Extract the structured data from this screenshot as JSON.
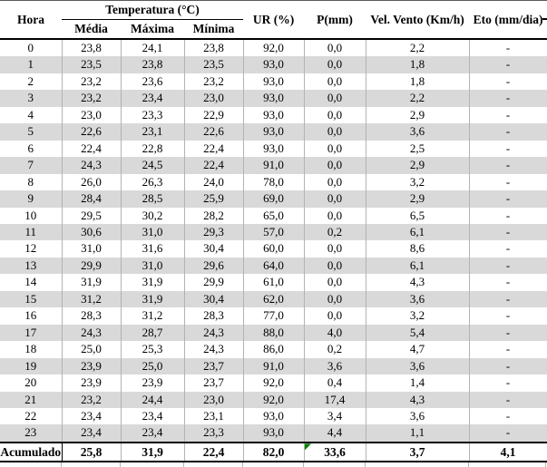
{
  "table": {
    "title_context": "Hourly weather data table",
    "header": {
      "hora": "Hora",
      "temperatura_group": "Temperatura (°C)",
      "media": "Média",
      "maxima": "Máxima",
      "minima": "Mínima",
      "ur": "UR (%)",
      "p": "P(mm)",
      "vento": "Vel. Vento (Km/h)",
      "eto": "Eto (mm/dia)"
    },
    "rows": [
      [
        "0",
        "23,8",
        "24,1",
        "23,8",
        "92,0",
        "0,0",
        "2,2",
        "-"
      ],
      [
        "1",
        "23,5",
        "23,8",
        "23,5",
        "93,0",
        "0,0",
        "1,8",
        "-"
      ],
      [
        "2",
        "23,2",
        "23,6",
        "23,2",
        "93,0",
        "0,0",
        "1,8",
        "-"
      ],
      [
        "3",
        "23,2",
        "23,4",
        "23,0",
        "93,0",
        "0,0",
        "2,2",
        "-"
      ],
      [
        "4",
        "23,0",
        "23,3",
        "22,9",
        "93,0",
        "0,0",
        "2,9",
        "-"
      ],
      [
        "5",
        "22,6",
        "23,1",
        "22,6",
        "93,0",
        "0,0",
        "3,6",
        "-"
      ],
      [
        "6",
        "22,4",
        "22,8",
        "22,4",
        "93,0",
        "0,0",
        "2,5",
        "-"
      ],
      [
        "7",
        "24,3",
        "24,5",
        "22,4",
        "91,0",
        "0,0",
        "2,9",
        "-"
      ],
      [
        "8",
        "26,0",
        "26,3",
        "24,0",
        "78,0",
        "0,0",
        "3,2",
        "-"
      ],
      [
        "9",
        "28,4",
        "28,5",
        "25,9",
        "69,0",
        "0,0",
        "2,9",
        "-"
      ],
      [
        "10",
        "29,5",
        "30,2",
        "28,2",
        "65,0",
        "0,0",
        "6,5",
        "-"
      ],
      [
        "11",
        "30,6",
        "31,0",
        "29,3",
        "57,0",
        "0,2",
        "6,1",
        "-"
      ],
      [
        "12",
        "31,0",
        "31,6",
        "30,4",
        "60,0",
        "0,0",
        "8,6",
        "-"
      ],
      [
        "13",
        "29,9",
        "31,0",
        "29,6",
        "64,0",
        "0,0",
        "6,1",
        "-"
      ],
      [
        "14",
        "31,9",
        "31,9",
        "29,9",
        "61,0",
        "0,0",
        "4,3",
        "-"
      ],
      [
        "15",
        "31,2",
        "31,9",
        "30,4",
        "62,0",
        "0,0",
        "3,6",
        "-"
      ],
      [
        "16",
        "28,3",
        "31,2",
        "28,3",
        "77,0",
        "0,0",
        "3,2",
        "-"
      ],
      [
        "17",
        "24,3",
        "28,7",
        "24,3",
        "88,0",
        "4,0",
        "5,4",
        "-"
      ],
      [
        "18",
        "25,0",
        "25,3",
        "24,3",
        "86,0",
        "0,2",
        "4,7",
        "-"
      ],
      [
        "19",
        "23,9",
        "25,0",
        "23,7",
        "91,0",
        "3,6",
        "3,6",
        "-"
      ],
      [
        "20",
        "23,9",
        "23,9",
        "23,7",
        "92,0",
        "0,4",
        "1,4",
        "-"
      ],
      [
        "21",
        "23,2",
        "24,4",
        "23,0",
        "92,0",
        "17,4",
        "4,3",
        "-"
      ],
      [
        "22",
        "23,4",
        "23,4",
        "23,1",
        "93,0",
        "3,4",
        "3,6",
        "-"
      ],
      [
        "23",
        "23,4",
        "23,4",
        "23,3",
        "93,0",
        "4,4",
        "1,1",
        "-"
      ]
    ],
    "footer": {
      "label": "Acumulado",
      "values": [
        "25,8",
        "31,9",
        "22,4",
        "82,0",
        "33,6",
        "3,7",
        "4,1"
      ]
    },
    "icons": {
      "p_cell_flag": "green-error-triangle"
    },
    "colors": {
      "stripe": "#d9d9d9",
      "gridline": "#b3b3b3",
      "border": "#000000",
      "error_marker": "#008000"
    }
  }
}
